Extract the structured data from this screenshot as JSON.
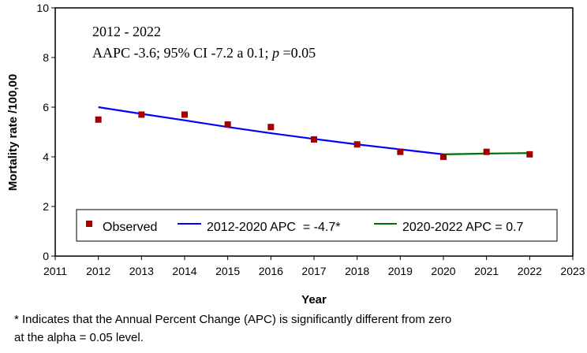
{
  "chart_data": {
    "type": "line",
    "xlabel": "Year",
    "ylabel": "Mortality rate /100,00",
    "xlim": [
      2011,
      2023
    ],
    "ylim": [
      0,
      10
    ],
    "x_ticks": [
      "2011",
      "2012",
      "2013",
      "2014",
      "2015",
      "2016",
      "2017",
      "2018",
      "2019",
      "2020",
      "2021",
      "2022",
      "2023"
    ],
    "y_ticks": [
      "0",
      "2",
      "4",
      "6",
      "8",
      "10"
    ],
    "annotation": {
      "line1": "2012 - 2022",
      "line2_pre": "AAPC -3.6; 95% CI -7.2 a 0.1; ",
      "line2_p": "p",
      "line2_post": " =0.05"
    },
    "series": [
      {
        "name": "Observed",
        "kind": "scatter",
        "color": "#a00000",
        "x": [
          2012,
          2013,
          2014,
          2015,
          2016,
          2017,
          2018,
          2019,
          2020,
          2021,
          2022
        ],
        "y": [
          5.5,
          5.7,
          5.7,
          5.3,
          5.2,
          4.7,
          4.5,
          4.2,
          4.0,
          4.2,
          4.1
        ]
      },
      {
        "name": "2012-2020 APC  = -4.7*",
        "kind": "line",
        "color": "#0000ff",
        "x": [
          2012,
          2013,
          2014,
          2015,
          2016,
          2017,
          2018,
          2019,
          2020
        ],
        "y": [
          6.0,
          5.73,
          5.47,
          5.2,
          4.95,
          4.72,
          4.5,
          4.3,
          4.1
        ]
      },
      {
        "name": "2020-2022 APC = 0.7",
        "kind": "line",
        "color": "#007000",
        "x": [
          2020,
          2021,
          2022
        ],
        "y": [
          4.1,
          4.13,
          4.15
        ]
      }
    ],
    "legend_position": "bottom-inside"
  },
  "footnote": {
    "line1": "* Indicates that the Annual Percent Change (APC) is significantly different from zero",
    "line2": "at the alpha = 0.05 level."
  }
}
